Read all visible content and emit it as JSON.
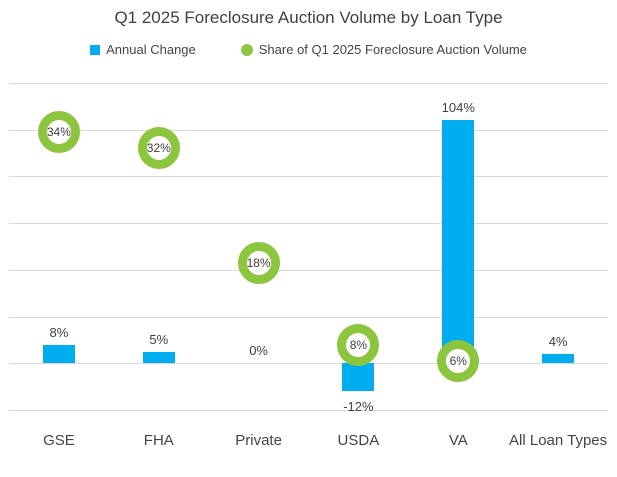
{
  "chart_data": {
    "type": "bar",
    "title": "Q1 2025 Foreclosure Auction Volume by Loan Type",
    "categories": [
      "GSE",
      "FHA",
      "Private",
      "USDA",
      "VA",
      "All Loan Types"
    ],
    "series": [
      {
        "name": "Annual Change",
        "marker": "square",
        "render_as": "bar",
        "color": "#00AEEF",
        "axis": "primary",
        "values": [
          8,
          5,
          0,
          -12,
          104,
          4
        ],
        "data_labels": [
          "8%",
          "5%",
          "0%",
          "-12%",
          "104%",
          "4%"
        ]
      },
      {
        "name": "Share of Q1 2025 Foreclosure Auction Volume",
        "marker": "circle",
        "render_as": "ring-marker",
        "color": "#8CC63F",
        "axis": "secondary",
        "values": [
          34,
          32,
          18,
          8,
          6,
          null
        ],
        "data_labels": [
          "34%",
          "32%",
          "18%",
          "8%",
          "6%",
          null
        ]
      }
    ],
    "primary_axis": {
      "min": -20,
      "max": 120,
      "step": 20,
      "tick_labels_visible": false
    },
    "secondary_axis": {
      "min": 0,
      "max": 40,
      "tick_labels_visible": false
    },
    "grid": {
      "visible": true,
      "color": "#D9D9D9"
    },
    "legend_position": "top",
    "background_color": "#FFFFFF",
    "text_color": "#404040"
  }
}
